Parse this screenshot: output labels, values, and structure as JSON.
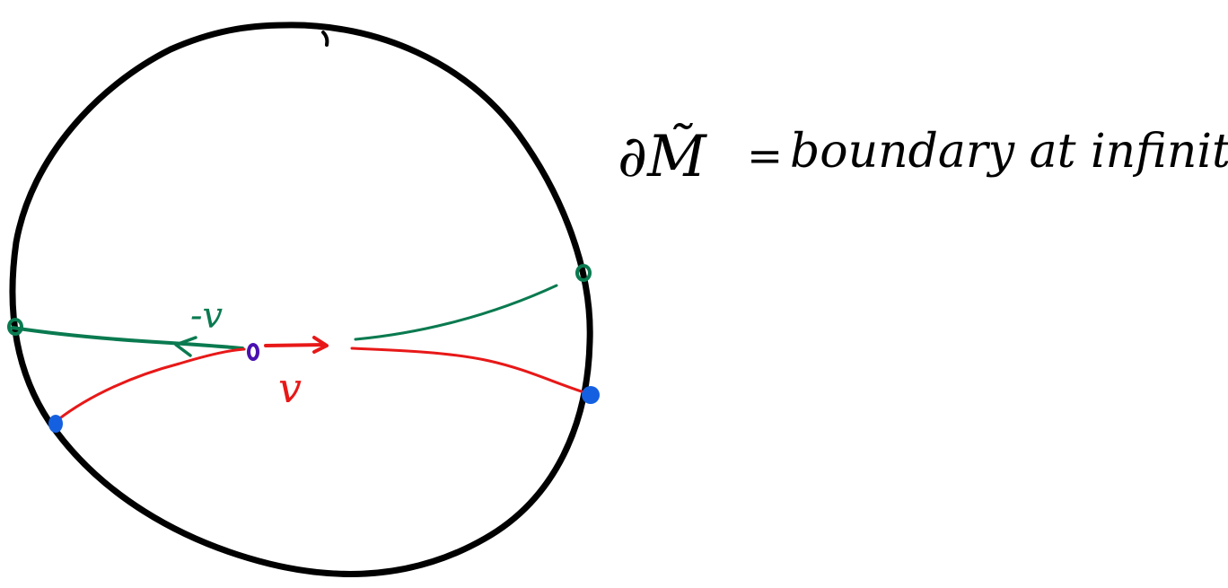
{
  "caption": {
    "lhs": "∂M̃",
    "equals": "=",
    "text": "boundary at infinity"
  },
  "vector_labels": {
    "negative": "-v",
    "positive": "v"
  },
  "colors": {
    "outline": "#000000",
    "negative_geodesic": "#0a7a50",
    "positive_geodesic": "#e81818",
    "base_point": "#4a10b0",
    "positive_endpoints": "#1560e0",
    "negative_endpoints": "#0a7a50"
  }
}
